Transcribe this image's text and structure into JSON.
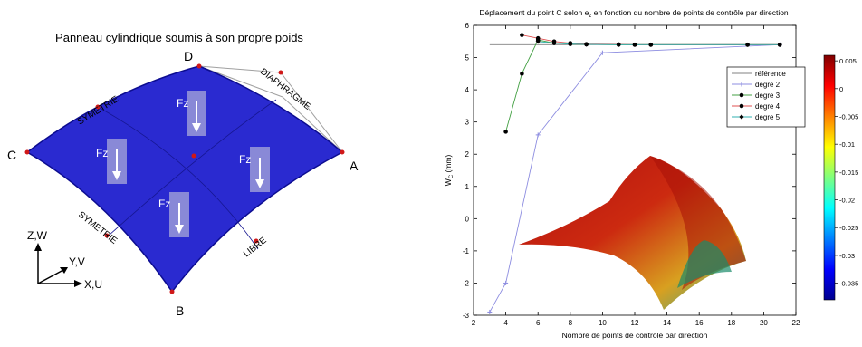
{
  "left_figure": {
    "title": "Panneau cylindrique soumis à son propre poids",
    "corners": {
      "a": "A",
      "b": "B",
      "c": "C",
      "d": "D"
    },
    "edges": {
      "symmetry_top": "SYMETRIE",
      "symmetry_bottom": "SYMETRIE",
      "diaphragm": "DIAPHRAGME",
      "free": "LIBRE"
    },
    "force_label": "Fz",
    "axes": {
      "z": "Z,W",
      "y": "Y,V",
      "x": "X,U"
    },
    "colors": {
      "panel": "#2020c8",
      "control_points": "#d01818",
      "control_net": "#a0a0a0"
    }
  },
  "chart_data": {
    "type": "line",
    "title": "Déplacement du point C selon e",
    "title_subscript": "z",
    "title_rest": " en fonction du nombre de points de contrôle par direction",
    "xlabel": "Nombre de points de contrôle par direction",
    "ylabel": "W",
    "ylabel_subscript": "C",
    "ylabel_unit": " (mm)",
    "xlim": [
      2,
      22
    ],
    "ylim": [
      -3,
      6
    ],
    "xticks": [
      2,
      4,
      6,
      8,
      10,
      12,
      14,
      16,
      18,
      20,
      22
    ],
    "yticks": [
      -3,
      -2,
      -1,
      0,
      1,
      2,
      3,
      4,
      5,
      6
    ],
    "grid": false,
    "legend_position": "top-right",
    "series": [
      {
        "name": "référence",
        "color": "#808080",
        "marker": "none",
        "x": [
          3,
          21
        ],
        "y": [
          5.4,
          5.4
        ]
      },
      {
        "name": "degre 2",
        "color": "#8c8ce0",
        "marker": "plus",
        "x": [
          3,
          4,
          6,
          10,
          21
        ],
        "y": [
          -2.9,
          -2.0,
          2.6,
          5.15,
          5.4
        ]
      },
      {
        "name": "degre 3",
        "color": "#44a044",
        "marker": "dot",
        "x": [
          4,
          5,
          6,
          7,
          8,
          9,
          11,
          12,
          13,
          19,
          21
        ],
        "y": [
          2.7,
          4.5,
          5.55,
          5.45,
          5.42,
          5.41,
          5.4,
          5.4,
          5.4,
          5.4,
          5.4
        ]
      },
      {
        "name": "degre 4",
        "color": "#e05050",
        "marker": "dot",
        "x": [
          5,
          6,
          7,
          8,
          9,
          11,
          12,
          13,
          19,
          21
        ],
        "y": [
          5.7,
          5.6,
          5.5,
          5.45,
          5.42,
          5.41,
          5.4,
          5.4,
          5.4,
          5.4
        ]
      },
      {
        "name": "degre 5",
        "color": "#30b0b0",
        "marker": "diamond",
        "x": [
          6,
          7,
          8,
          9,
          11,
          12,
          13,
          19,
          21
        ],
        "y": [
          5.5,
          5.45,
          5.42,
          5.41,
          5.4,
          5.4,
          5.4,
          5.4,
          5.4
        ]
      }
    ],
    "colorbar": {
      "ticks": [
        "0.005",
        "0",
        "-0.005",
        "-0.01",
        "-0.015",
        "-0.02",
        "-0.025",
        "-0.03",
        "-0.035"
      ],
      "tick_values": [
        0.005,
        0,
        -0.005,
        -0.01,
        -0.015,
        -0.02,
        -0.025,
        -0.03,
        -0.035
      ],
      "range": [
        -0.038,
        0.006
      ],
      "colormap": "jet"
    }
  }
}
